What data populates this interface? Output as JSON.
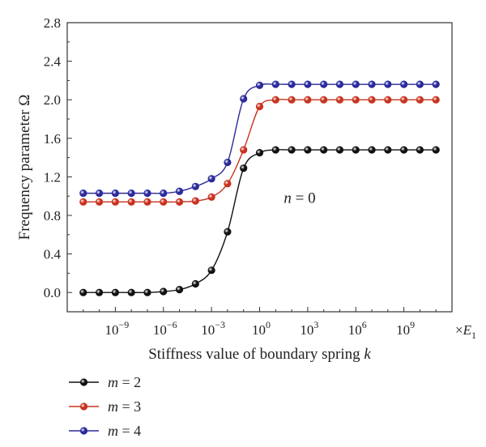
{
  "chart_data": {
    "type": "line",
    "xlabel": "Stiffness value of boundary spring",
    "xlabel_var": "k",
    "ylabel": "Frequency parameter Ω",
    "x_unit_prefix": "×",
    "x_unit_var": "E",
    "x_unit_sub": "1",
    "x_scale": "log10",
    "xlim_exp": [
      -12,
      12
    ],
    "ylim": [
      -0.2,
      2.8
    ],
    "y_ticks": [
      0.0,
      0.4,
      0.8,
      1.2,
      1.6,
      2.0,
      2.4,
      2.8
    ],
    "y_tick_labels": [
      "0.0",
      "0.4",
      "0.8",
      "1.2",
      "1.6",
      "2.0",
      "2.4",
      "2.8"
    ],
    "x_ticks_exp": [
      -9,
      -6,
      -3,
      0,
      3,
      6,
      9
    ],
    "x_tick_labels": [
      {
        "base": "10",
        "exp": "−9"
      },
      {
        "base": "10",
        "exp": "−6"
      },
      {
        "base": "10",
        "exp": "−3"
      },
      {
        "base": "10",
        "exp": "0"
      },
      {
        "base": "10",
        "exp": "3"
      },
      {
        "base": "10",
        "exp": "6"
      },
      {
        "base": "10",
        "exp": "9"
      }
    ],
    "annotation": {
      "var": "n",
      "text": " = 0",
      "x_exp": 2.5,
      "y": 0.98
    },
    "legend_position": "below",
    "x_exp": [
      -11,
      -10,
      -9,
      -8,
      -7,
      -6,
      -5,
      -4,
      -3,
      -2,
      -1,
      0,
      1,
      2,
      3,
      4,
      5,
      6,
      7,
      8,
      9,
      10,
      11
    ],
    "series": [
      {
        "name": "m = 2",
        "var": "m",
        "label": " = 2",
        "color": "#111111",
        "values": [
          0.0,
          0.0,
          0.0,
          0.0,
          0.0,
          0.01,
          0.03,
          0.09,
          0.23,
          0.63,
          1.29,
          1.45,
          1.48,
          1.48,
          1.48,
          1.48,
          1.48,
          1.48,
          1.48,
          1.48,
          1.48,
          1.48,
          1.48
        ]
      },
      {
        "name": "m = 3",
        "var": "m",
        "label": " = 3",
        "color": "#c8321e",
        "values": [
          0.94,
          0.94,
          0.94,
          0.94,
          0.94,
          0.94,
          0.94,
          0.95,
          0.99,
          1.13,
          1.48,
          1.93,
          2.0,
          2.0,
          2.0,
          2.0,
          2.0,
          2.0,
          2.0,
          2.0,
          2.0,
          2.0,
          2.0
        ]
      },
      {
        "name": "m = 4",
        "var": "m",
        "label": " = 4",
        "color": "#2b2a9a",
        "values": [
          1.03,
          1.03,
          1.03,
          1.03,
          1.03,
          1.03,
          1.05,
          1.1,
          1.18,
          1.35,
          2.01,
          2.15,
          2.16,
          2.16,
          2.16,
          2.16,
          2.16,
          2.16,
          2.16,
          2.16,
          2.16,
          2.16,
          2.16
        ]
      }
    ]
  }
}
